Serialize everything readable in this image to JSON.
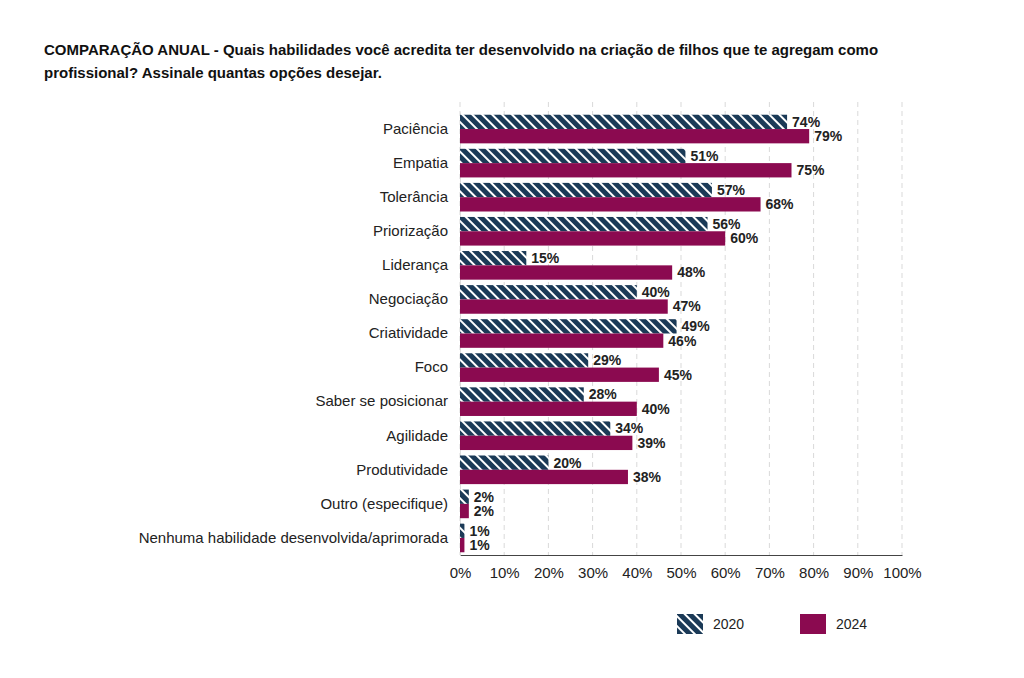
{
  "chart_data": {
    "type": "bar",
    "orientation": "horizontal",
    "title": "COMPARAÇÃO ANUAL - Quais habilidades você acredita ter desenvolvido na criação de filhos que te agregam como profissional? Assinale quantas opções desejar.",
    "categories": [
      "Paciência",
      "Empatia",
      "Tolerância",
      "Priorização",
      "Liderança",
      "Negociação",
      "Criatividade",
      "Foco",
      "Saber se posicionar",
      "Agilidade",
      "Produtividade",
      "Outro (especifique)",
      "Nenhuma habilidade desenvolvida/aprimorada"
    ],
    "series": [
      {
        "name": "2020",
        "color": "#1b3a57",
        "values": [
          74,
          51,
          57,
          56,
          15,
          40,
          49,
          29,
          28,
          34,
          20,
          2,
          1
        ],
        "value_labels": [
          "74%",
          "51%",
          "57%",
          "56%",
          "15%",
          "40%",
          "49%",
          "29%",
          "28%",
          "34%",
          "20%",
          "2%",
          "1%"
        ]
      },
      {
        "name": "2024",
        "color": "#8b0a50",
        "values": [
          79,
          75,
          68,
          60,
          48,
          47,
          46,
          45,
          40,
          39,
          38,
          2,
          1
        ],
        "value_labels": [
          "79%",
          "75%",
          "68%",
          "60%",
          "48%",
          "47%",
          "46%",
          "45%",
          "40%",
          "39%",
          "38%",
          "2%",
          "1%"
        ]
      }
    ],
    "xlim": [
      0,
      100
    ],
    "xticks": [
      {
        "value": 0,
        "label": "0%"
      },
      {
        "value": 10,
        "label": "10%"
      },
      {
        "value": 20,
        "label": "20%"
      },
      {
        "value": 30,
        "label": "30%"
      },
      {
        "value": 40,
        "label": "40%"
      },
      {
        "value": 50,
        "label": "50%"
      },
      {
        "value": 60,
        "label": "60%"
      },
      {
        "value": 70,
        "label": "70%"
      },
      {
        "value": 80,
        "label": "80%"
      },
      {
        "value": 90,
        "label": "90%"
      },
      {
        "value": 100,
        "label": "100%"
      }
    ],
    "grid": true,
    "data_labels": true,
    "legend": "bottom"
  }
}
